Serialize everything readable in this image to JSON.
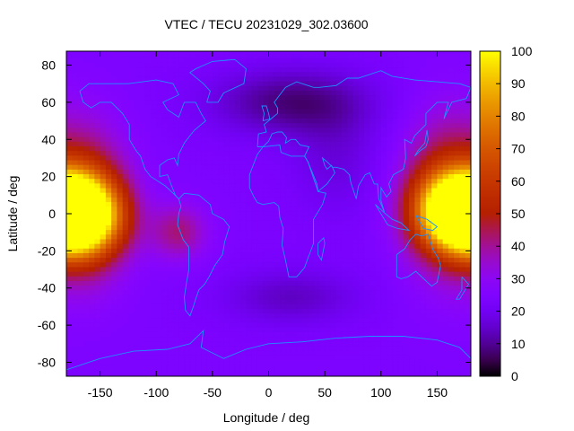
{
  "chart_data": {
    "type": "heatmap",
    "title": "VTEC / TECU 20231029_302.03600",
    "xlabel": "Longitude / deg",
    "ylabel": "Latitude / deg",
    "xlim": [
      -180,
      180
    ],
    "ylim": [
      -87.5,
      87.5
    ],
    "zlim": [
      0,
      100
    ],
    "x_ticks": [
      -150,
      -100,
      -50,
      0,
      50,
      100,
      150
    ],
    "y_ticks": [
      -80,
      -60,
      -40,
      -20,
      0,
      20,
      40,
      60,
      80
    ],
    "colorbar_ticks": [
      0,
      10,
      20,
      30,
      40,
      50,
      60,
      70,
      80,
      90,
      100
    ],
    "colormap": "gnuplot-pm3d",
    "coastline_color": "#1e90ff",
    "field": {
      "background": 24,
      "features": [
        {
          "lon": -170,
          "lat": -2,
          "peak": 72,
          "dlon": 38,
          "dlat": 20
        },
        {
          "lon": -160,
          "lat": 5,
          "peak": 28,
          "dlon": 35,
          "dlat": 40
        },
        {
          "lon": 170,
          "lat": 2,
          "peak": 70,
          "dlon": 38,
          "dlat": 20
        },
        {
          "lon": 155,
          "lat": 10,
          "peak": 25,
          "dlon": 35,
          "dlat": 42
        },
        {
          "lon": -80,
          "lat": -10,
          "peak": 18,
          "dlon": 25,
          "dlat": 15
        },
        {
          "lon": 20,
          "lat": 60,
          "peak": -16,
          "dlon": 70,
          "dlat": 18
        },
        {
          "lon": 20,
          "lat": -45,
          "peak": -10,
          "dlon": 60,
          "dlat": 15
        },
        {
          "lon": 60,
          "lat": 30,
          "peak": -7,
          "dlon": 40,
          "dlat": 30
        }
      ]
    }
  }
}
